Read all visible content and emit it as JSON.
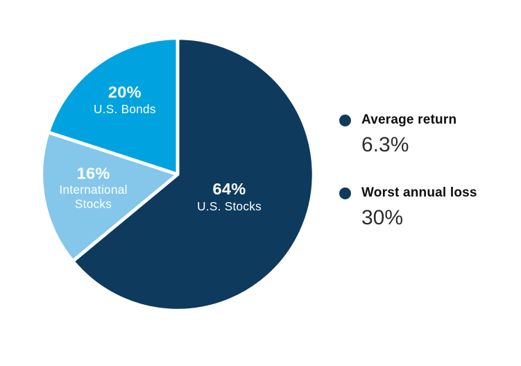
{
  "chart_data": {
    "type": "pie",
    "title": "",
    "start_angle_deg": 0,
    "direction": "clockwise",
    "legend_position": "right",
    "gap_color": "#ffffff",
    "label_color": "#ffffff",
    "slices": [
      {
        "label": "U.S. Stocks",
        "pct_label": "64%",
        "value": 64,
        "color": "#0e3a5e",
        "label_r": 0.42
      },
      {
        "label": "International Stocks",
        "label_lines": [
          "International",
          "Stocks"
        ],
        "pct_label": "16%",
        "value": 16,
        "color": "#85c7ea",
        "label_r": 0.63
      },
      {
        "label": "U.S. Bonds",
        "pct_label": "20%",
        "value": 20,
        "color": "#00a3e0",
        "label_r": 0.66
      }
    ]
  },
  "legend": {
    "bullet_color": "#0e3a5e",
    "items": [
      {
        "label": "Average return",
        "value": "6.3%"
      },
      {
        "label": "Worst annual loss",
        "value": "30%"
      }
    ]
  }
}
